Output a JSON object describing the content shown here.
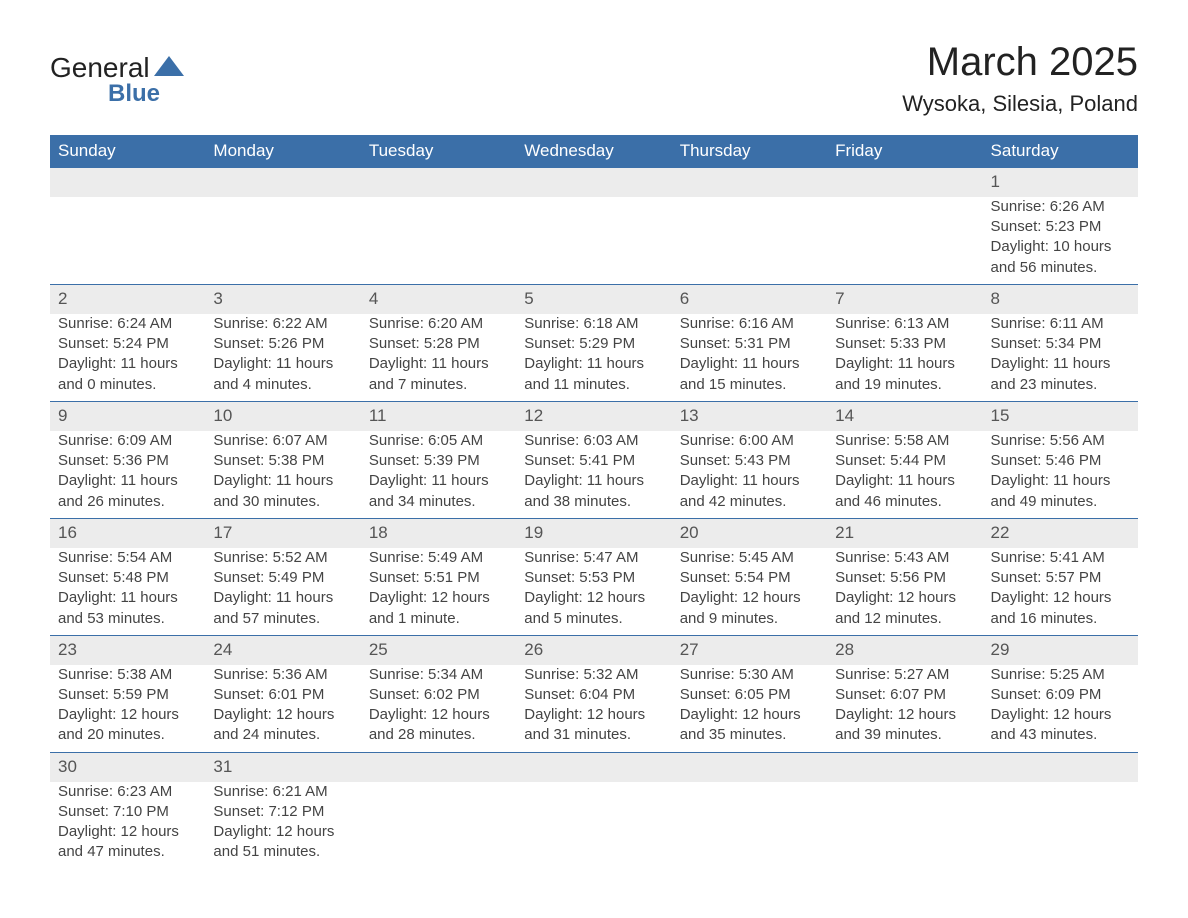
{
  "logo": {
    "text_general": "General",
    "text_blue": "Blue",
    "shape_color": "#3b6fa8"
  },
  "title": "March 2025",
  "location": "Wysoka, Silesia, Poland",
  "colors": {
    "header_bg": "#3b6fa8",
    "header_text": "#ffffff",
    "daynum_bg": "#ececec",
    "row_border": "#3b6fa8",
    "body_text": "#444444",
    "page_bg": "#ffffff"
  },
  "day_headers": [
    "Sunday",
    "Monday",
    "Tuesday",
    "Wednesday",
    "Thursday",
    "Friday",
    "Saturday"
  ],
  "weeks": [
    {
      "nums": [
        "",
        "",
        "",
        "",
        "",
        "",
        "1"
      ],
      "cells": [
        {},
        {},
        {},
        {},
        {},
        {},
        {
          "sunrise": "Sunrise: 6:26 AM",
          "sunset": "Sunset: 5:23 PM",
          "daylight1": "Daylight: 10 hours",
          "daylight2": "and 56 minutes."
        }
      ]
    },
    {
      "nums": [
        "2",
        "3",
        "4",
        "5",
        "6",
        "7",
        "8"
      ],
      "cells": [
        {
          "sunrise": "Sunrise: 6:24 AM",
          "sunset": "Sunset: 5:24 PM",
          "daylight1": "Daylight: 11 hours",
          "daylight2": "and 0 minutes."
        },
        {
          "sunrise": "Sunrise: 6:22 AM",
          "sunset": "Sunset: 5:26 PM",
          "daylight1": "Daylight: 11 hours",
          "daylight2": "and 4 minutes."
        },
        {
          "sunrise": "Sunrise: 6:20 AM",
          "sunset": "Sunset: 5:28 PM",
          "daylight1": "Daylight: 11 hours",
          "daylight2": "and 7 minutes."
        },
        {
          "sunrise": "Sunrise: 6:18 AM",
          "sunset": "Sunset: 5:29 PM",
          "daylight1": "Daylight: 11 hours",
          "daylight2": "and 11 minutes."
        },
        {
          "sunrise": "Sunrise: 6:16 AM",
          "sunset": "Sunset: 5:31 PM",
          "daylight1": "Daylight: 11 hours",
          "daylight2": "and 15 minutes."
        },
        {
          "sunrise": "Sunrise: 6:13 AM",
          "sunset": "Sunset: 5:33 PM",
          "daylight1": "Daylight: 11 hours",
          "daylight2": "and 19 minutes."
        },
        {
          "sunrise": "Sunrise: 6:11 AM",
          "sunset": "Sunset: 5:34 PM",
          "daylight1": "Daylight: 11 hours",
          "daylight2": "and 23 minutes."
        }
      ]
    },
    {
      "nums": [
        "9",
        "10",
        "11",
        "12",
        "13",
        "14",
        "15"
      ],
      "cells": [
        {
          "sunrise": "Sunrise: 6:09 AM",
          "sunset": "Sunset: 5:36 PM",
          "daylight1": "Daylight: 11 hours",
          "daylight2": "and 26 minutes."
        },
        {
          "sunrise": "Sunrise: 6:07 AM",
          "sunset": "Sunset: 5:38 PM",
          "daylight1": "Daylight: 11 hours",
          "daylight2": "and 30 minutes."
        },
        {
          "sunrise": "Sunrise: 6:05 AM",
          "sunset": "Sunset: 5:39 PM",
          "daylight1": "Daylight: 11 hours",
          "daylight2": "and 34 minutes."
        },
        {
          "sunrise": "Sunrise: 6:03 AM",
          "sunset": "Sunset: 5:41 PM",
          "daylight1": "Daylight: 11 hours",
          "daylight2": "and 38 minutes."
        },
        {
          "sunrise": "Sunrise: 6:00 AM",
          "sunset": "Sunset: 5:43 PM",
          "daylight1": "Daylight: 11 hours",
          "daylight2": "and 42 minutes."
        },
        {
          "sunrise": "Sunrise: 5:58 AM",
          "sunset": "Sunset: 5:44 PM",
          "daylight1": "Daylight: 11 hours",
          "daylight2": "and 46 minutes."
        },
        {
          "sunrise": "Sunrise: 5:56 AM",
          "sunset": "Sunset: 5:46 PM",
          "daylight1": "Daylight: 11 hours",
          "daylight2": "and 49 minutes."
        }
      ]
    },
    {
      "nums": [
        "16",
        "17",
        "18",
        "19",
        "20",
        "21",
        "22"
      ],
      "cells": [
        {
          "sunrise": "Sunrise: 5:54 AM",
          "sunset": "Sunset: 5:48 PM",
          "daylight1": "Daylight: 11 hours",
          "daylight2": "and 53 minutes."
        },
        {
          "sunrise": "Sunrise: 5:52 AM",
          "sunset": "Sunset: 5:49 PM",
          "daylight1": "Daylight: 11 hours",
          "daylight2": "and 57 minutes."
        },
        {
          "sunrise": "Sunrise: 5:49 AM",
          "sunset": "Sunset: 5:51 PM",
          "daylight1": "Daylight: 12 hours",
          "daylight2": "and 1 minute."
        },
        {
          "sunrise": "Sunrise: 5:47 AM",
          "sunset": "Sunset: 5:53 PM",
          "daylight1": "Daylight: 12 hours",
          "daylight2": "and 5 minutes."
        },
        {
          "sunrise": "Sunrise: 5:45 AM",
          "sunset": "Sunset: 5:54 PM",
          "daylight1": "Daylight: 12 hours",
          "daylight2": "and 9 minutes."
        },
        {
          "sunrise": "Sunrise: 5:43 AM",
          "sunset": "Sunset: 5:56 PM",
          "daylight1": "Daylight: 12 hours",
          "daylight2": "and 12 minutes."
        },
        {
          "sunrise": "Sunrise: 5:41 AM",
          "sunset": "Sunset: 5:57 PM",
          "daylight1": "Daylight: 12 hours",
          "daylight2": "and 16 minutes."
        }
      ]
    },
    {
      "nums": [
        "23",
        "24",
        "25",
        "26",
        "27",
        "28",
        "29"
      ],
      "cells": [
        {
          "sunrise": "Sunrise: 5:38 AM",
          "sunset": "Sunset: 5:59 PM",
          "daylight1": "Daylight: 12 hours",
          "daylight2": "and 20 minutes."
        },
        {
          "sunrise": "Sunrise: 5:36 AM",
          "sunset": "Sunset: 6:01 PM",
          "daylight1": "Daylight: 12 hours",
          "daylight2": "and 24 minutes."
        },
        {
          "sunrise": "Sunrise: 5:34 AM",
          "sunset": "Sunset: 6:02 PM",
          "daylight1": "Daylight: 12 hours",
          "daylight2": "and 28 minutes."
        },
        {
          "sunrise": "Sunrise: 5:32 AM",
          "sunset": "Sunset: 6:04 PM",
          "daylight1": "Daylight: 12 hours",
          "daylight2": "and 31 minutes."
        },
        {
          "sunrise": "Sunrise: 5:30 AM",
          "sunset": "Sunset: 6:05 PM",
          "daylight1": "Daylight: 12 hours",
          "daylight2": "and 35 minutes."
        },
        {
          "sunrise": "Sunrise: 5:27 AM",
          "sunset": "Sunset: 6:07 PM",
          "daylight1": "Daylight: 12 hours",
          "daylight2": "and 39 minutes."
        },
        {
          "sunrise": "Sunrise: 5:25 AM",
          "sunset": "Sunset: 6:09 PM",
          "daylight1": "Daylight: 12 hours",
          "daylight2": "and 43 minutes."
        }
      ]
    },
    {
      "nums": [
        "30",
        "31",
        "",
        "",
        "",
        "",
        ""
      ],
      "cells": [
        {
          "sunrise": "Sunrise: 6:23 AM",
          "sunset": "Sunset: 7:10 PM",
          "daylight1": "Daylight: 12 hours",
          "daylight2": "and 47 minutes."
        },
        {
          "sunrise": "Sunrise: 6:21 AM",
          "sunset": "Sunset: 7:12 PM",
          "daylight1": "Daylight: 12 hours",
          "daylight2": "and 51 minutes."
        },
        {},
        {},
        {},
        {},
        {}
      ]
    }
  ]
}
